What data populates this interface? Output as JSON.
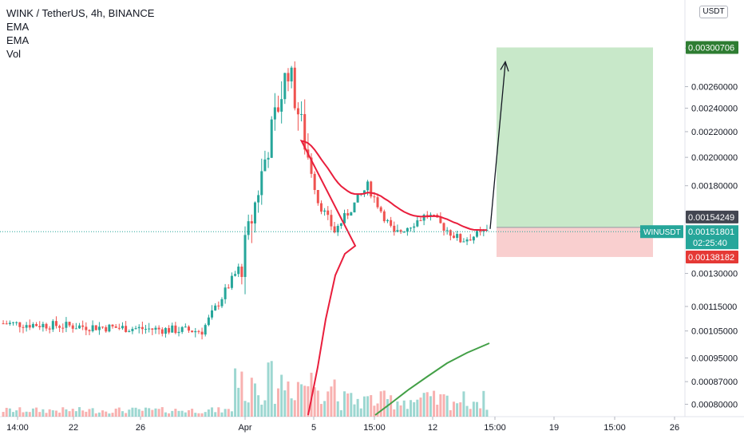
{
  "legend": {
    "title": "WINK / TetherUS, 4h, BINANCE",
    "ind1": "EMA",
    "ind2": "EMA",
    "ind3": "Vol"
  },
  "currency_badge": "USDT",
  "symbol_tag": "WINUSDT",
  "countdown": "02:25:40",
  "colors": {
    "up": "#26a69a",
    "down": "#ef5350",
    "ema_fast": "#e91e3c",
    "ema_slow": "#43a047",
    "target_zone": "#c8e8c9",
    "stop_zone": "#f9cfcf"
  },
  "chart_data": {
    "type": "candlestick",
    "y_scale": "log",
    "ylim": [
      0.00078,
      0.0034
    ],
    "y_ticks": [
      "0.00080000",
      "0.00087000",
      "0.00095000",
      "0.00105000",
      "0.00115000",
      "0.00130000",
      "0.00180000",
      "0.00200000",
      "0.00220000",
      "0.00240000",
      "0.00260000",
      "0.00300000"
    ],
    "x_ticks": [
      "14:00",
      "22",
      "26",
      "Apr",
      "5",
      "15:00",
      "12",
      "15:00",
      "19",
      "15:00",
      "26"
    ],
    "price_labels": {
      "target": "0.00300706",
      "entry": "0.00154249",
      "current": "0.00151801",
      "stop": "0.00138182"
    },
    "position": {
      "entry": 0.00154249,
      "target": 0.00300706,
      "stop": 0.00138182
    },
    "ohlc_key_points": [
      {
        "bar": 0,
        "close": 0.00108
      },
      {
        "bar": 60,
        "close": 0.00105
      },
      {
        "bar": 72,
        "close": 0.00135
      },
      {
        "bar": 80,
        "close": 0.0021
      },
      {
        "bar": 86,
        "close": 0.0028
      },
      {
        "bar": 95,
        "close": 0.0017
      },
      {
        "bar": 100,
        "close": 0.00152
      },
      {
        "bar": 110,
        "close": 0.0018
      },
      {
        "bar": 118,
        "close": 0.0015
      },
      {
        "bar": 128,
        "close": 0.00162
      },
      {
        "bar": 138,
        "close": 0.00147
      },
      {
        "bar": 146,
        "close": 0.00151801
      }
    ],
    "series": [
      {
        "name": "EMA",
        "indicator": "EMA fast"
      },
      {
        "name": "EMA",
        "indicator": "EMA slow"
      },
      {
        "name": "Vol",
        "indicator": "Volume"
      }
    ]
  }
}
